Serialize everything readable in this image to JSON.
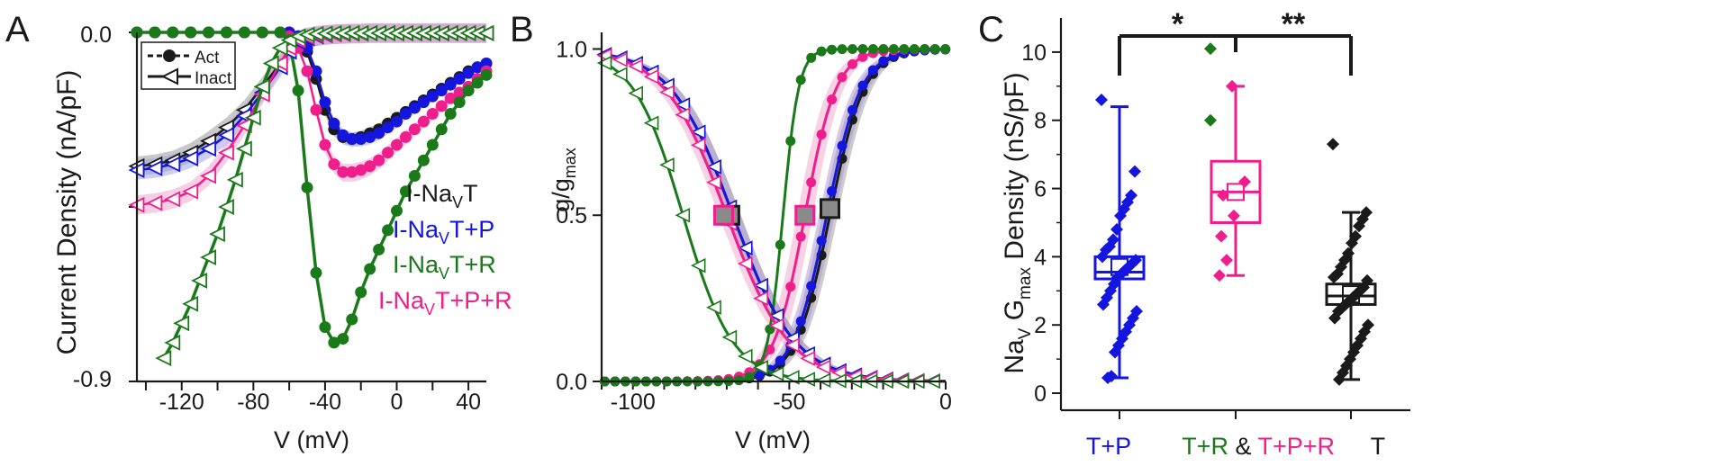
{
  "colors": {
    "black": "#1a1a1a",
    "blue": "#1515e0",
    "green": "#1a7a1a",
    "pink": "#f01e8c",
    "blue_band": "#9fa8e6",
    "pink_band": "#f0a6cc",
    "gray_band": "#9a9a9a",
    "purple_band": "#a993d6",
    "gray_square": "#8a8a8a"
  },
  "chart_data": [
    {
      "panel": "A",
      "type": "line",
      "panel_label": "A",
      "ylabel": "Current Density (nA/pF)",
      "xlabel": "V (mV)",
      "xlim": [
        -145,
        50
      ],
      "ylim": [
        -0.9,
        0.0
      ],
      "y_ticks_labeled": [
        "0.0",
        "-0.9"
      ],
      "x_ticks": [
        -120,
        -80,
        -40,
        0,
        40
      ],
      "x_tick_labels": [
        "-120",
        "-80",
        "-40",
        "0",
        "40"
      ],
      "legend_style": {
        "act": "Act",
        "inact": "Inact"
      },
      "legend_series": [
        "I-NaVT",
        "I-NaVT+P",
        "I-NaVT+R",
        "I-NaVT+P+R"
      ],
      "legend_series_display": [
        {
          "main": "I-Na",
          "sub": "V",
          "rest": "T",
          "color": "black"
        },
        {
          "main": "I-Na",
          "sub": "V",
          "rest": "T+P",
          "color": "blue"
        },
        {
          "main": "I-Na",
          "sub": "V",
          "rest": "T+R",
          "color": "green"
        },
        {
          "main": "I-Na",
          "sub": "V",
          "rest": "T+P+R",
          "color": "pink"
        }
      ],
      "series": [
        {
          "name": "I-NaVT Act",
          "kind": "act",
          "color": "black",
          "x": [
            -145,
            -135,
            -125,
            -115,
            -105,
            -95,
            -85,
            -75,
            -65,
            -60,
            -55,
            -50,
            -45,
            -40,
            -35,
            -30,
            -25,
            -20,
            -15,
            -10,
            -5,
            0,
            5,
            10,
            15,
            20,
            25,
            30,
            35,
            40,
            45,
            50
          ],
          "y": [
            0,
            0,
            0,
            0,
            0,
            0,
            0,
            0,
            0,
            0,
            -0.01,
            -0.05,
            -0.12,
            -0.2,
            -0.25,
            -0.27,
            -0.275,
            -0.27,
            -0.26,
            -0.25,
            -0.235,
            -0.22,
            -0.205,
            -0.19,
            -0.175,
            -0.16,
            -0.145,
            -0.13,
            -0.115,
            -0.1,
            -0.09,
            -0.08
          ]
        },
        {
          "name": "I-NaVT+P Act",
          "kind": "act",
          "color": "blue",
          "x": [
            -145,
            -135,
            -125,
            -115,
            -105,
            -95,
            -85,
            -75,
            -65,
            -60,
            -55,
            -50,
            -45,
            -40,
            -35,
            -30,
            -25,
            -20,
            -15,
            -10,
            -5,
            0,
            5,
            10,
            15,
            20,
            25,
            30,
            35,
            40,
            45,
            50
          ],
          "y": [
            0,
            0,
            0,
            0,
            0,
            0,
            0,
            0,
            0,
            0,
            -0.01,
            -0.04,
            -0.1,
            -0.18,
            -0.235,
            -0.265,
            -0.275,
            -0.275,
            -0.27,
            -0.26,
            -0.245,
            -0.23,
            -0.21,
            -0.195,
            -0.18,
            -0.165,
            -0.15,
            -0.135,
            -0.12,
            -0.105,
            -0.09,
            -0.08
          ]
        },
        {
          "name": "I-NaVT+P+R Act",
          "kind": "act",
          "color": "pink",
          "x": [
            -145,
            -135,
            -125,
            -115,
            -105,
            -95,
            -85,
            -75,
            -65,
            -60,
            -55,
            -50,
            -45,
            -40,
            -35,
            -30,
            -25,
            -20,
            -15,
            -10,
            -5,
            0,
            5,
            10,
            15,
            20,
            25,
            30,
            35,
            40,
            45,
            50
          ],
          "y": [
            0,
            0,
            0,
            0,
            0,
            0,
            0,
            0,
            0,
            -0.01,
            -0.04,
            -0.1,
            -0.2,
            -0.29,
            -0.34,
            -0.36,
            -0.36,
            -0.355,
            -0.345,
            -0.33,
            -0.31,
            -0.29,
            -0.27,
            -0.25,
            -0.23,
            -0.21,
            -0.19,
            -0.17,
            -0.155,
            -0.14,
            -0.12,
            -0.1
          ]
        },
        {
          "name": "I-NaVT+R Act",
          "kind": "act",
          "color": "green",
          "x": [
            -145,
            -135,
            -125,
            -115,
            -105,
            -95,
            -85,
            -75,
            -65,
            -60,
            -55,
            -50,
            -45,
            -40,
            -35,
            -30,
            -25,
            -20,
            -15,
            -10,
            -5,
            0,
            5,
            10,
            15,
            20,
            25,
            30,
            35,
            40,
            45,
            50
          ],
          "y": [
            0,
            0,
            0,
            0,
            0,
            0,
            0,
            0,
            0,
            -0.02,
            -0.15,
            -0.4,
            -0.62,
            -0.76,
            -0.8,
            -0.79,
            -0.74,
            -0.67,
            -0.61,
            -0.56,
            -0.51,
            -0.46,
            -0.41,
            -0.37,
            -0.33,
            -0.29,
            -0.25,
            -0.21,
            -0.18,
            -0.15,
            -0.13,
            -0.11
          ]
        },
        {
          "name": "I-NaVT Inact",
          "kind": "inact",
          "color": "black",
          "x": [
            -145,
            -135,
            -125,
            -115,
            -105,
            -95,
            -85,
            -75,
            -65,
            -60,
            -55,
            -50,
            -45,
            -40,
            -35,
            -30,
            -25,
            -20,
            -15,
            -10,
            -5,
            0,
            5,
            10,
            15,
            20,
            25,
            30,
            35,
            40,
            45,
            50
          ],
          "y": [
            -0.345,
            -0.34,
            -0.33,
            -0.31,
            -0.28,
            -0.245,
            -0.2,
            -0.14,
            -0.08,
            -0.045,
            -0.025,
            -0.015,
            -0.01,
            -0.007,
            -0.005,
            -0.004,
            -0.003,
            -0.003,
            -0.002,
            -0.002,
            -0.002,
            -0.002,
            -0.002,
            -0.002,
            -0.002,
            -0.002,
            -0.002,
            -0.002,
            -0.002,
            -0.002,
            -0.002,
            -0.002
          ]
        },
        {
          "name": "I-NaVT+P Inact",
          "kind": "inact",
          "color": "blue",
          "x": [
            -145,
            -135,
            -125,
            -115,
            -105,
            -95,
            -85,
            -75,
            -65,
            -60,
            -55,
            -50,
            -45,
            -40,
            -35,
            -30,
            -25,
            -20,
            -15,
            -10,
            -5,
            0,
            5,
            10,
            15,
            20,
            25,
            30,
            35,
            40,
            45,
            50
          ],
          "y": [
            -0.355,
            -0.35,
            -0.34,
            -0.325,
            -0.3,
            -0.265,
            -0.215,
            -0.155,
            -0.09,
            -0.05,
            -0.025,
            -0.015,
            -0.01,
            -0.007,
            -0.005,
            -0.004,
            -0.003,
            -0.003,
            -0.002,
            -0.002,
            -0.002,
            -0.002,
            -0.002,
            -0.002,
            -0.002,
            -0.002,
            -0.002,
            -0.002,
            -0.002,
            -0.002,
            -0.002,
            -0.002
          ]
        },
        {
          "name": "I-NaVT+P+R Inact",
          "kind": "inact",
          "color": "pink",
          "x": [
            -145,
            -135,
            -125,
            -115,
            -105,
            -95,
            -85,
            -75,
            -65,
            -60,
            -55,
            -50,
            -45,
            -40,
            -35,
            -30,
            -25,
            -20,
            -15,
            -10,
            -5,
            0,
            5,
            10,
            15,
            20,
            25,
            30,
            35,
            40,
            45,
            50
          ],
          "y": [
            -0.445,
            -0.44,
            -0.43,
            -0.41,
            -0.37,
            -0.31,
            -0.24,
            -0.16,
            -0.08,
            -0.04,
            -0.02,
            -0.012,
            -0.008,
            -0.006,
            -0.005,
            -0.004,
            -0.003,
            -0.003,
            -0.002,
            -0.002,
            -0.002,
            -0.002,
            -0.002,
            -0.002,
            -0.002,
            -0.002,
            -0.002,
            -0.002,
            -0.002,
            -0.002,
            -0.002,
            -0.002
          ]
        },
        {
          "name": "I-NaVT+R Inact",
          "kind": "inact",
          "color": "green",
          "x": [
            -130,
            -125,
            -120,
            -115,
            -110,
            -105,
            -100,
            -95,
            -90,
            -85,
            -80,
            -75,
            -70,
            -65,
            -60,
            -55,
            -50,
            -45,
            -40,
            -35,
            -30,
            -25,
            -20,
            -15,
            -10,
            -5,
            0,
            5,
            10,
            15,
            20,
            25,
            30,
            35,
            40,
            45,
            50
          ],
          "y": [
            -0.84,
            -0.8,
            -0.75,
            -0.7,
            -0.64,
            -0.58,
            -0.52,
            -0.45,
            -0.38,
            -0.3,
            -0.22,
            -0.14,
            -0.08,
            -0.04,
            -0.02,
            -0.01,
            -0.006,
            -0.004,
            -0.003,
            -0.002,
            -0.002,
            -0.002,
            -0.002,
            -0.002,
            -0.002,
            -0.002,
            -0.002,
            -0.002,
            -0.002,
            -0.002,
            -0.002,
            -0.002,
            -0.002,
            -0.002,
            -0.002,
            -0.002,
            -0.002
          ]
        }
      ]
    },
    {
      "panel": "B",
      "type": "line",
      "panel_label": "B",
      "ylabel_main": "g/g",
      "ylabel_sub": "max",
      "ylabel": "g/gmax",
      "xlabel": "V (mV)",
      "xlim": [
        -110,
        0
      ],
      "ylim": [
        0,
        1.05
      ],
      "y_ticks": [
        0,
        0.5,
        1.0
      ],
      "y_tick_labels": [
        "0.0",
        "0.5",
        "1.0"
      ],
      "x_ticks": [
        -100,
        -50,
        0
      ],
      "x_tick_labels": [
        "-100",
        "-50",
        "0"
      ],
      "series": [
        {
          "name": "T activation",
          "kind": "act",
          "color": "black",
          "v_half": -37,
          "k": 5.5
        },
        {
          "name": "T+P activation",
          "kind": "act",
          "color": "blue",
          "v_half": -38,
          "k": 5.5
        },
        {
          "name": "T+P+R activation",
          "kind": "act",
          "color": "pink",
          "v_half": -45,
          "k": 5.0
        },
        {
          "name": "T+R activation",
          "kind": "act",
          "color": "green",
          "v_half": -52,
          "k": 2.5
        },
        {
          "name": "T inactivation",
          "kind": "inact",
          "color": "black",
          "v_half": -68,
          "k": 10
        },
        {
          "name": "T+P inactivation",
          "kind": "inact",
          "color": "blue",
          "v_half": -68,
          "k": 10
        },
        {
          "name": "T+P+R inactivation",
          "kind": "inact",
          "color": "pink",
          "v_half": -70,
          "k": 10
        },
        {
          "name": "T+R inactivation",
          "kind": "inact",
          "color": "green",
          "v_half": -84,
          "k": 8
        }
      ],
      "v_half_markers": [
        {
          "x": -69,
          "y": 0.5,
          "color": "black"
        },
        {
          "x": -71,
          "y": 0.5,
          "color": "pink"
        },
        {
          "x": -45,
          "y": 0.5,
          "color": "pink"
        },
        {
          "x": -37,
          "y": 0.52,
          "color": "black"
        }
      ]
    },
    {
      "panel": "C",
      "type": "box",
      "panel_label": "C",
      "ylabel": "NaV Gmax Density (nS/pF)",
      "ylabel_parts": {
        "a": "Na",
        "a_sub": "V",
        "b": " G",
        "b_sub": "max",
        "c": " Density (nS/pF)"
      },
      "ylim": [
        -0.5,
        11
      ],
      "y_ticks": [
        0,
        2,
        4,
        6,
        8,
        10
      ],
      "y_tick_labels": [
        "0",
        "2",
        "4",
        "6",
        "8",
        "10"
      ],
      "categories": [
        "T+P",
        "T+R & T+P+R",
        "T"
      ],
      "category_labels": [
        {
          "text": "T+P",
          "color": "blue"
        },
        {
          "text": "T+R",
          "color": "green"
        },
        {
          "text": " & ",
          "color": "black"
        },
        {
          "text": "T+P+R",
          "color": "pink"
        },
        {
          "text": "T",
          "color": "black"
        }
      ],
      "groups": [
        {
          "name": "T+P",
          "color": "blue",
          "q1": 3.35,
          "median": 3.55,
          "q3": 4.0,
          "mean": 3.7,
          "whisker_low": 0.45,
          "whisker_high": 8.4,
          "points": [
            8.6,
            6.5,
            5.8,
            5.6,
            5.4,
            5.2,
            4.8,
            4.5,
            4.3,
            4.2,
            4.0,
            3.9,
            3.8,
            3.7,
            3.6,
            3.5,
            3.4,
            3.2,
            3.0,
            2.8,
            2.6,
            2.4,
            2.2,
            2.0,
            1.8,
            1.6,
            1.4,
            1.2,
            0.5,
            0.45
          ]
        },
        {
          "name": "T+R",
          "color": "green",
          "points": [
            10.1,
            8.0
          ]
        },
        {
          "name": "T+P+R",
          "color": "pink",
          "q1": 5.0,
          "median": 5.9,
          "q3": 6.8,
          "mean": 5.9,
          "whisker_low": 3.45,
          "whisker_high": 9.0,
          "points": [
            9.0,
            6.2,
            5.8,
            5.2,
            4.6,
            3.9,
            3.45
          ]
        },
        {
          "name": "T",
          "color": "black",
          "q1": 2.6,
          "median": 2.85,
          "q3": 3.2,
          "mean": 2.9,
          "whisker_low": 0.4,
          "whisker_high": 5.3,
          "points": [
            7.3,
            5.3,
            5.1,
            4.9,
            4.6,
            4.4,
            4.1,
            3.9,
            3.7,
            3.5,
            3.4,
            3.3,
            3.1,
            3.0,
            2.9,
            2.8,
            2.7,
            2.6,
            2.5,
            2.4,
            2.2,
            2.0,
            1.8,
            1.6,
            1.4,
            1.2,
            1.0,
            0.8,
            0.6,
            0.4
          ]
        }
      ],
      "significance": [
        {
          "from": 0,
          "to": 1,
          "label": "*"
        },
        {
          "from": 1,
          "to": 2,
          "label": "**"
        }
      ]
    }
  ]
}
